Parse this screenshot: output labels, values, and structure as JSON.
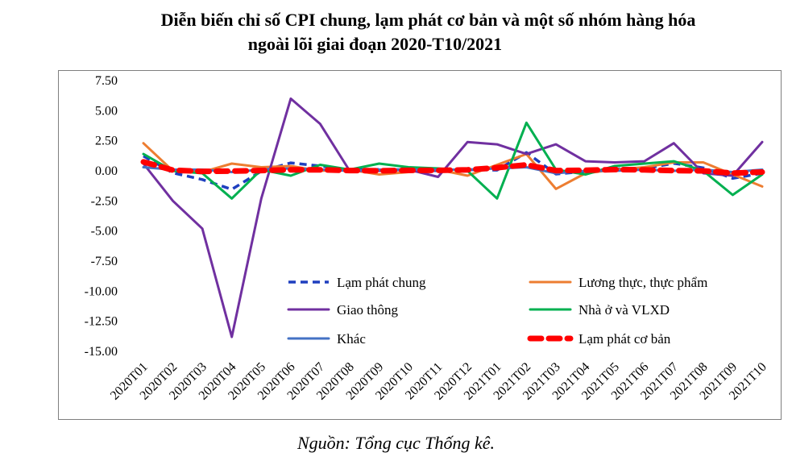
{
  "chart_data": {
    "type": "line",
    "title_line1": "Diễn biến chỉ số CPI chung, lạm phát cơ bản và một số nhóm hàng hóa",
    "title_line2": "ngoài lõi giai đoạn 2020-T10/2021",
    "source": "Nguồn: Tổng cục Thống kê.",
    "ylim": [
      -15,
      7.5
    ],
    "yticks": [
      "7.50",
      "5.00",
      "2.50",
      "0.00",
      "-2.50",
      "-5.00",
      "-7.50",
      "-10.00",
      "-12.50",
      "-15.00"
    ],
    "ytick_values": [
      7.5,
      5,
      2.5,
      0,
      -2.5,
      -5,
      -7.5,
      -10,
      -12.5,
      -15
    ],
    "categories": [
      "2020T01",
      "2020T02",
      "2020T03",
      "2020T04",
      "2020T05",
      "2020T06",
      "2020T07",
      "2020T08",
      "2020T09",
      "2020T10",
      "2020T11",
      "2020T12",
      "2021T01",
      "2021T02",
      "2021T03",
      "2021T04",
      "2021T05",
      "2021T06",
      "2021T07",
      "2021T08",
      "2021T09",
      "2021T10"
    ],
    "series": [
      {
        "key": "lamphat_chung",
        "name": "Lạm phát chung",
        "color": "#1f3fbf",
        "style": "dashed",
        "values": [
          1.23,
          -0.17,
          -0.72,
          -1.54,
          -0.03,
          0.66,
          0.4,
          0.07,
          0.12,
          0.09,
          0.01,
          0.1,
          0.06,
          1.52,
          -0.27,
          -0.04,
          0.16,
          0.19,
          0.62,
          0.25,
          -0.62,
          -0.2
        ]
      },
      {
        "key": "luongthuc",
        "name": "Lương thực, thực phẩm",
        "color": "#ed7d31",
        "style": "solid",
        "values": [
          2.3,
          0.0,
          -0.1,
          0.6,
          0.3,
          0.4,
          0.0,
          0.1,
          -0.3,
          -0.1,
          0.1,
          -0.4,
          0.5,
          1.4,
          -1.5,
          -0.2,
          0.1,
          0.3,
          0.7,
          0.7,
          -0.3,
          -1.3
        ]
      },
      {
        "key": "giaothong",
        "name": "Giao thông",
        "color": "#7030a0",
        "style": "solid",
        "values": [
          0.6,
          -2.5,
          -4.8,
          -13.8,
          -2.3,
          6.0,
          3.9,
          0.0,
          0.0,
          0.1,
          -0.5,
          2.4,
          2.2,
          1.4,
          2.2,
          0.8,
          0.7,
          0.8,
          2.3,
          -0.2,
          -0.4,
          2.4
        ]
      },
      {
        "key": "nhao",
        "name": "Nhà ở  và VLXD",
        "color": "#00b050",
        "style": "solid",
        "values": [
          1.4,
          0.0,
          -0.2,
          -2.3,
          0.1,
          -0.4,
          0.5,
          0.1,
          0.6,
          0.3,
          0.2,
          0.0,
          -2.3,
          4.0,
          0.1,
          -0.3,
          0.4,
          0.6,
          0.8,
          0.0,
          -2.0,
          -0.3
        ]
      },
      {
        "key": "khac",
        "name": "Khác",
        "color": "#4472c4",
        "style": "solid",
        "values": [
          0.3,
          0.1,
          0.1,
          -0.1,
          0.1,
          0.2,
          0.1,
          0.0,
          0.1,
          0.1,
          0.1,
          0.1,
          0.2,
          0.3,
          -0.2,
          0.0,
          0.0,
          0.1,
          0.0,
          0.1,
          -0.1,
          0.1
        ]
      },
      {
        "key": "lamphat_cb",
        "name": "Lạm phát cơ bản",
        "color": "#ff0000",
        "style": "thick-dashed",
        "values": [
          0.74,
          0.06,
          -0.05,
          -0.02,
          0.03,
          0.09,
          0.09,
          0.03,
          0.01,
          0.04,
          0.04,
          0.09,
          0.26,
          0.5,
          0.02,
          0.05,
          0.11,
          0.08,
          0.02,
          0.0,
          -0.19,
          -0.1
        ]
      }
    ],
    "legend": {
      "placement": "lower-center",
      "order": [
        "lamphat_chung",
        "luongthuc",
        "giaothong",
        "nhao",
        "khac",
        "lamphat_cb"
      ]
    },
    "grid": false
  }
}
